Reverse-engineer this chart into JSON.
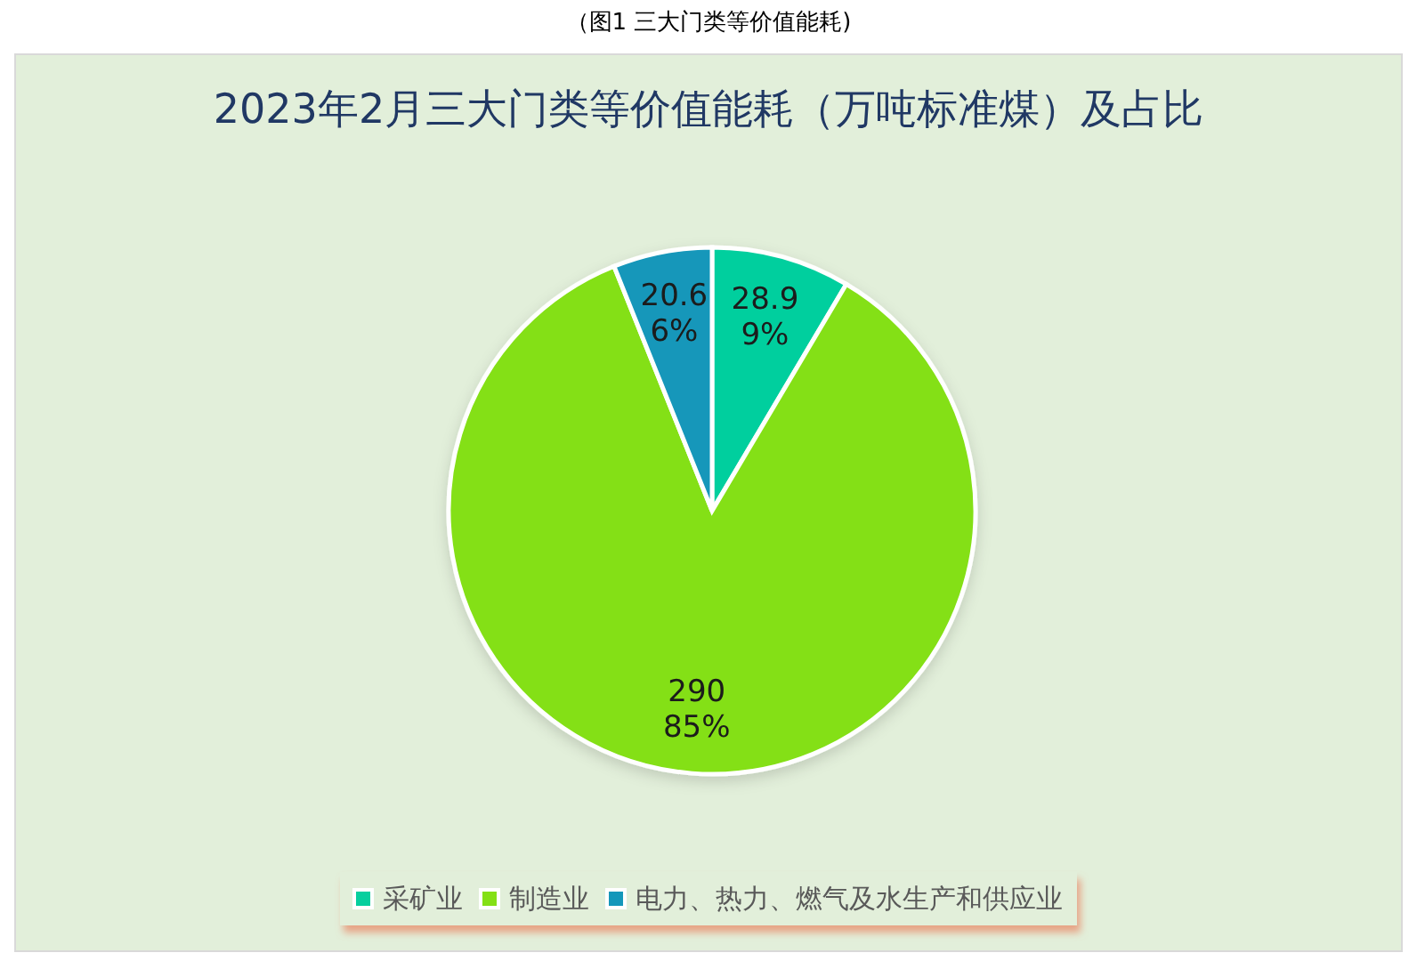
{
  "chart_data": {
    "type": "pie",
    "title": "2023年2月三大门类等价值能耗（万吨标准煤）及占比",
    "annotations": [
      "（图1 三大门类等价值能耗)"
    ],
    "categories": [
      "采矿业",
      "制造业",
      "电力、热力、燃气及水生产和供应业"
    ],
    "values": [
      28.9,
      290,
      20.6
    ],
    "colors": [
      "#06cf9e",
      "#84e015",
      "#1497ba"
    ],
    "value_labels": [
      "28.9\n9%",
      "290\n85%",
      "20.6\n6%"
    ],
    "legend": "bottom"
  }
}
